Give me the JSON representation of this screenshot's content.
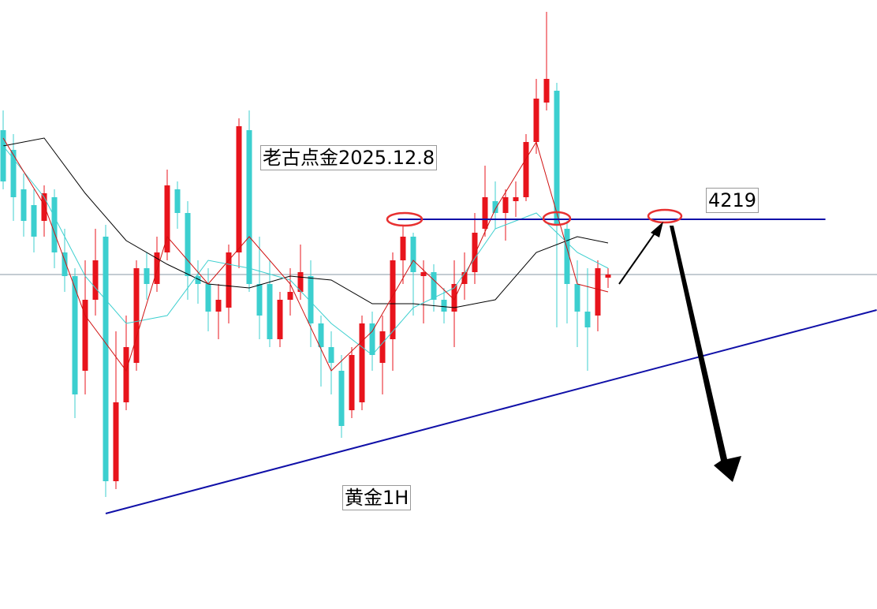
{
  "chart_data": {
    "type": "candlestick",
    "annotations": [
      "老古点金2025.12.8",
      "黄金1H"
    ],
    "ylim": [
      4169.6,
      4246.8
    ],
    "up_color": "#e8141c",
    "down_color": "#3ccfcf",
    "price_line": {
      "value": 4212.0,
      "color": "#8a9aa6"
    },
    "ohlc": [
      [
        4230.3,
        4232.8,
        4222.8,
        4223.8
      ],
      [
        4227.8,
        4229.8,
        4218.8,
        4221.8
      ],
      [
        4222.8,
        4224.8,
        4216.8,
        4218.8
      ],
      [
        4220.8,
        4222.8,
        4214.8,
        4216.8
      ],
      [
        4218.8,
        4223.3,
        4216.8,
        4222.3
      ],
      [
        4221.8,
        4222.8,
        4212.8,
        4214.8
      ],
      [
        4214.8,
        4217.8,
        4209.8,
        4211.8
      ],
      [
        4211.8,
        4212.8,
        4193.8,
        4196.8
      ],
      [
        4199.8,
        4213.8,
        4196.8,
        4208.8
      ],
      [
        4208.8,
        4217.8,
        4206.8,
        4213.8
      ],
      [
        4216.8,
        4218.3,
        4183.8,
        4185.8
      ],
      [
        4185.8,
        4204.8,
        4184.8,
        4195.8
      ],
      [
        4195.8,
        4206.8,
        4194.8,
        4202.8
      ],
      [
        4200.8,
        4213.8,
        4199.8,
        4212.8
      ],
      [
        4212.8,
        4214.8,
        4208.8,
        4210.8
      ],
      [
        4210.8,
        4216.8,
        4209.8,
        4214.8
      ],
      [
        4214.8,
        4225.3,
        4213.8,
        4223.3
      ],
      [
        4222.8,
        4223.8,
        4217.8,
        4219.8
      ],
      [
        4219.8,
        4221.3,
        4208.8,
        4211.8
      ],
      [
        4211.8,
        4213.8,
        4208.3,
        4210.8
      ],
      [
        4210.8,
        4212.8,
        4204.8,
        4207.3
      ],
      [
        4207.3,
        4210.8,
        4203.8,
        4208.8
      ],
      [
        4207.8,
        4215.8,
        4205.8,
        4214.8
      ],
      [
        4214.8,
        4231.8,
        4212.8,
        4230.8
      ],
      [
        4230.3,
        4232.8,
        4209.8,
        4210.8
      ],
      [
        4210.8,
        4216.8,
        4203.8,
        4206.8
      ],
      [
        4210.8,
        4213.8,
        4202.8,
        4203.8
      ],
      [
        4203.8,
        4209.8,
        4202.8,
        4208.8
      ],
      [
        4208.8,
        4212.8,
        4206.8,
        4209.8
      ],
      [
        4209.8,
        4215.8,
        4208.8,
        4212.3
      ],
      [
        4211.8,
        4213.8,
        4202.8,
        4205.8
      ],
      [
        4205.8,
        4206.8,
        4197.8,
        4202.8
      ],
      [
        4202.8,
        4204.8,
        4196.8,
        4200.8
      ],
      [
        4199.8,
        4201.8,
        4191.3,
        4192.8
      ],
      [
        4194.8,
        4202.8,
        4193.8,
        4201.8
      ],
      [
        4195.8,
        4206.8,
        4194.8,
        4205.8
      ],
      [
        4205.8,
        4207.3,
        4199.8,
        4201.8
      ],
      [
        4200.8,
        4206.8,
        4196.8,
        4204.8
      ],
      [
        4203.8,
        4214.8,
        4199.8,
        4213.8
      ],
      [
        4213.8,
        4218.3,
        4210.8,
        4216.8
      ],
      [
        4216.8,
        4217.3,
        4206.8,
        4212.3
      ],
      [
        4211.8,
        4213.8,
        4205.8,
        4212.3
      ],
      [
        4212.3,
        4213.3,
        4207.3,
        4208.8
      ],
      [
        4208.8,
        4210.3,
        4205.8,
        4207.3
      ],
      [
        4207.3,
        4213.8,
        4202.8,
        4210.8
      ],
      [
        4210.8,
        4214.8,
        4208.8,
        4212.3
      ],
      [
        4212.3,
        4219.8,
        4210.8,
        4217.3
      ],
      [
        4217.8,
        4225.8,
        4216.8,
        4221.8
      ],
      [
        4221.3,
        4223.8,
        4217.8,
        4219.8
      ],
      [
        4219.8,
        4222.8,
        4216.3,
        4221.8
      ],
      [
        4221.3,
        4223.8,
        4219.3,
        4221.8
      ],
      [
        4221.8,
        4229.8,
        4221.3,
        4228.8
      ],
      [
        4228.8,
        4236.8,
        4227.3,
        4234.3
      ],
      [
        4233.8,
        4245.3,
        4232.8,
        4236.8
      ],
      [
        4235.3,
        4236.3,
        4205.3,
        4218.3
      ],
      [
        4217.8,
        4218.8,
        4205.8,
        4210.8
      ],
      [
        4210.8,
        4213.8,
        4202.8,
        4207.3
      ],
      [
        4207.3,
        4212.8,
        4199.8,
        4205.3
      ],
      [
        4206.8,
        4213.8,
        4204.8,
        4212.8
      ],
      [
        4211.6,
        4212.8,
        4210.3,
        4212.0
      ]
    ],
    "lines": [
      {
        "color": "#000000",
        "x": [
          0,
          4,
          8,
          12,
          16,
          20,
          24,
          28,
          32,
          36,
          40,
          44,
          48,
          52,
          56,
          59
        ],
        "values": [
          4228.3,
          4229.3,
          4222.3,
          4216.3,
          4213.3,
          4210.8,
          4210.3,
          4211.8,
          4211.3,
          4208.3,
          4208.3,
          4207.8,
          4208.8,
          4214.8,
          4216.8,
          4216.0
        ]
      },
      {
        "color": "#3ccfcf",
        "x": [
          0,
          4,
          8,
          12,
          16,
          20,
          24,
          28,
          32,
          36,
          40,
          44,
          48,
          52,
          56,
          59
        ],
        "values": [
          4228.3,
          4221.8,
          4211.8,
          4205.8,
          4206.8,
          4213.8,
          4212.8,
          4211.3,
          4205.8,
          4201.8,
          4207.8,
          4210.3,
          4217.8,
          4219.8,
          4214.8,
          4212.8
        ]
      },
      {
        "color": "#d01010",
        "x": [
          0,
          4,
          8,
          12,
          16,
          20,
          24,
          28,
          32,
          36,
          40,
          44,
          48,
          52,
          56,
          59
        ],
        "values": [
          4229.3,
          4220.8,
          4206.8,
          4199.8,
          4216.8,
          4210.8,
          4216.8,
          4210.8,
          4199.8,
          4204.8,
          4213.8,
          4208.8,
          4220.3,
          4228.8,
          4210.8,
          4209.8
        ]
      }
    ],
    "trendlines": [
      {
        "color": "#1010a8",
        "x": [
          10,
          85.2
        ],
        "values": [
          4181.7,
          4207.5
        ]
      },
      {
        "color": "#1010a8",
        "x": [
          38.5,
          80.2
        ],
        "values": [
          4219,
          4219
        ]
      }
    ]
  }
}
